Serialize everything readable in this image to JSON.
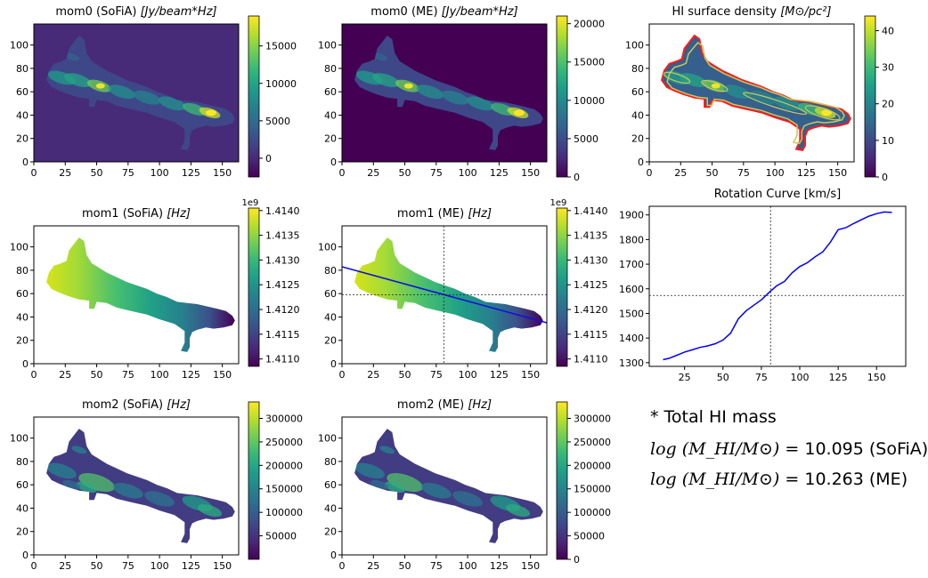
{
  "palette": {
    "viridis": [
      "#440154",
      "#482878",
      "#3e4989",
      "#31688e",
      "#26828e",
      "#1f9e89",
      "#35b779",
      "#6ece58",
      "#b5de2b",
      "#fde725"
    ],
    "rotation_line": "#0000ff",
    "contour_outer": "#ff1a1a",
    "contour_inner": "#c8c85a",
    "crosshair": "#222222"
  },
  "chart_data": [
    {
      "id": "mom0_sofia",
      "type": "heatmap",
      "title": "mom0 (SoFiA)  [Jy/beam*Hz]",
      "title_parts": [
        "mom0 (SoFiA)  ",
        "[Jy/beam*Hz]"
      ],
      "x_ticks": [
        "0",
        "25",
        "50",
        "75",
        "100",
        "125",
        "150"
      ],
      "y_ticks": [
        "0",
        "20",
        "40",
        "60",
        "80",
        "100"
      ],
      "xlim": [
        0,
        163
      ],
      "ylim": [
        0,
        118
      ],
      "colorbar_ticks": [
        "0",
        "5000",
        "10000",
        "15000"
      ],
      "colorbar_range": [
        -2500,
        19000
      ],
      "background_level": 0.12
    },
    {
      "id": "mom0_me",
      "type": "heatmap",
      "title": "mom0 (ME)  [Jy/beam*Hz]",
      "title_parts": [
        "mom0 (ME)  ",
        "[Jy/beam*Hz]"
      ],
      "x_ticks": [
        "0",
        "25",
        "50",
        "75",
        "100",
        "125",
        "150"
      ],
      "y_ticks": [
        "0",
        "20",
        "40",
        "60",
        "80",
        "100"
      ],
      "xlim": [
        0,
        163
      ],
      "ylim": [
        0,
        118
      ],
      "colorbar_ticks": [
        "0",
        "5000",
        "10000",
        "15000",
        "20000"
      ],
      "colorbar_range": [
        0,
        21000
      ],
      "background_level": 0.0
    },
    {
      "id": "hi_density",
      "type": "heatmap",
      "title": "HI surface density [M⊙/pc²]",
      "title_parts": [
        "HI surface density ",
        "[M⊙/pc²]"
      ],
      "x_ticks": [
        "0",
        "25",
        "50",
        "75",
        "100",
        "125",
        "150"
      ],
      "y_ticks": [
        "0",
        "20",
        "40",
        "60",
        "80",
        "100"
      ],
      "xlim": [
        0,
        163
      ],
      "ylim": [
        0,
        118
      ],
      "colorbar_ticks": [
        "0",
        "10",
        "20",
        "30",
        "40"
      ],
      "colorbar_range": [
        0,
        44
      ],
      "contours": true
    },
    {
      "id": "mom1_sofia",
      "type": "heatmap",
      "title": "mom1 (SoFiA)  [Hz]",
      "title_parts": [
        "mom1 (SoFiA)  ",
        "[Hz]"
      ],
      "x_ticks": [
        "0",
        "25",
        "50",
        "75",
        "100",
        "125",
        "150"
      ],
      "y_ticks": [
        "0",
        "20",
        "40",
        "60",
        "80",
        "100"
      ],
      "xlim": [
        0,
        163
      ],
      "ylim": [
        0,
        118
      ],
      "colorbar_ticks": [
        "1.4110",
        "1.4115",
        "1.4120",
        "1.4125",
        "1.4130",
        "1.4135",
        "1.4140"
      ],
      "colorbar_range": [
        1.41085,
        1.41405
      ],
      "colorbar_offset": "1e9"
    },
    {
      "id": "mom1_me",
      "type": "heatmap",
      "title": "mom1 (ME)  [Hz]",
      "title_parts": [
        "mom1 (ME)  ",
        "[Hz]"
      ],
      "x_ticks": [
        "0",
        "25",
        "50",
        "75",
        "100",
        "125",
        "150"
      ],
      "y_ticks": [
        "0",
        "20",
        "40",
        "60",
        "80",
        "100"
      ],
      "xlim": [
        0,
        163
      ],
      "ylim": [
        0,
        118
      ],
      "colorbar_ticks": [
        "1.4110",
        "1.4115",
        "1.4120",
        "1.4125",
        "1.4130",
        "1.4135",
        "1.4140"
      ],
      "colorbar_range": [
        1.41085,
        1.41405
      ],
      "colorbar_offset": "1e9",
      "major_axis": {
        "x": [
          0,
          163
        ],
        "y": [
          83,
          35
        ]
      },
      "center": {
        "x": 81,
        "y": 59
      }
    },
    {
      "id": "rotation_curve",
      "type": "line",
      "title": "Rotation Curve [km/s]",
      "x_ticks": [
        "25",
        "50",
        "75",
        "100",
        "125",
        "150"
      ],
      "y_ticks": [
        "1300",
        "1400",
        "1500",
        "1600",
        "1700",
        "1800",
        "1900"
      ],
      "xlim": [
        2,
        169
      ],
      "ylim": [
        1285,
        1935
      ],
      "center": {
        "x": 81,
        "y": 1573
      },
      "x": [
        11,
        15,
        20,
        25,
        30,
        35,
        40,
        45,
        50,
        55,
        60,
        65,
        70,
        75,
        80,
        85,
        90,
        95,
        100,
        105,
        110,
        115,
        120,
        125,
        130,
        135,
        140,
        145,
        150,
        155,
        160
      ],
      "y": [
        1312,
        1318,
        1330,
        1343,
        1352,
        1362,
        1368,
        1377,
        1392,
        1420,
        1478,
        1510,
        1533,
        1555,
        1585,
        1612,
        1630,
        1665,
        1690,
        1706,
        1730,
        1750,
        1790,
        1840,
        1848,
        1865,
        1880,
        1895,
        1905,
        1912,
        1910
      ]
    },
    {
      "id": "mom2_sofia",
      "type": "heatmap",
      "title": "mom2 (SoFiA)  [Hz]",
      "title_parts": [
        "mom2 (SoFiA)  ",
        "[Hz]"
      ],
      "x_ticks": [
        "0",
        "25",
        "50",
        "75",
        "100",
        "125",
        "150"
      ],
      "y_ticks": [
        "0",
        "20",
        "40",
        "60",
        "80",
        "100"
      ],
      "xlim": [
        0,
        163
      ],
      "ylim": [
        0,
        118
      ],
      "colorbar_ticks": [
        "50000",
        "100000",
        "150000",
        "200000",
        "250000",
        "300000"
      ],
      "colorbar_range": [
        0,
        335000
      ]
    },
    {
      "id": "mom2_me",
      "type": "heatmap",
      "title": "mom2 (ME)  [Hz]",
      "title_parts": [
        "mom2 (ME)  ",
        "[Hz]"
      ],
      "x_ticks": [
        "0",
        "25",
        "50",
        "75",
        "100",
        "125",
        "150"
      ],
      "y_ticks": [
        "0",
        "20",
        "40",
        "60",
        "80",
        "100"
      ],
      "xlim": [
        0,
        163
      ],
      "ylim": [
        0,
        118
      ],
      "colorbar_ticks": [
        "0",
        "50000",
        "100000",
        "150000",
        "200000",
        "250000",
        "300000"
      ],
      "colorbar_range": [
        0,
        335000
      ]
    }
  ],
  "mass": {
    "heading": "* Total HI mass",
    "line1_prefix": "log ",
    "line1_formula": "(M_HI/M⊙) = ",
    "line1_value": "10.095 (SoFiA)",
    "line2_prefix": "log ",
    "line2_formula": "(M_HI/M⊙) = ",
    "line2_value": "10.263 (ME)"
  }
}
